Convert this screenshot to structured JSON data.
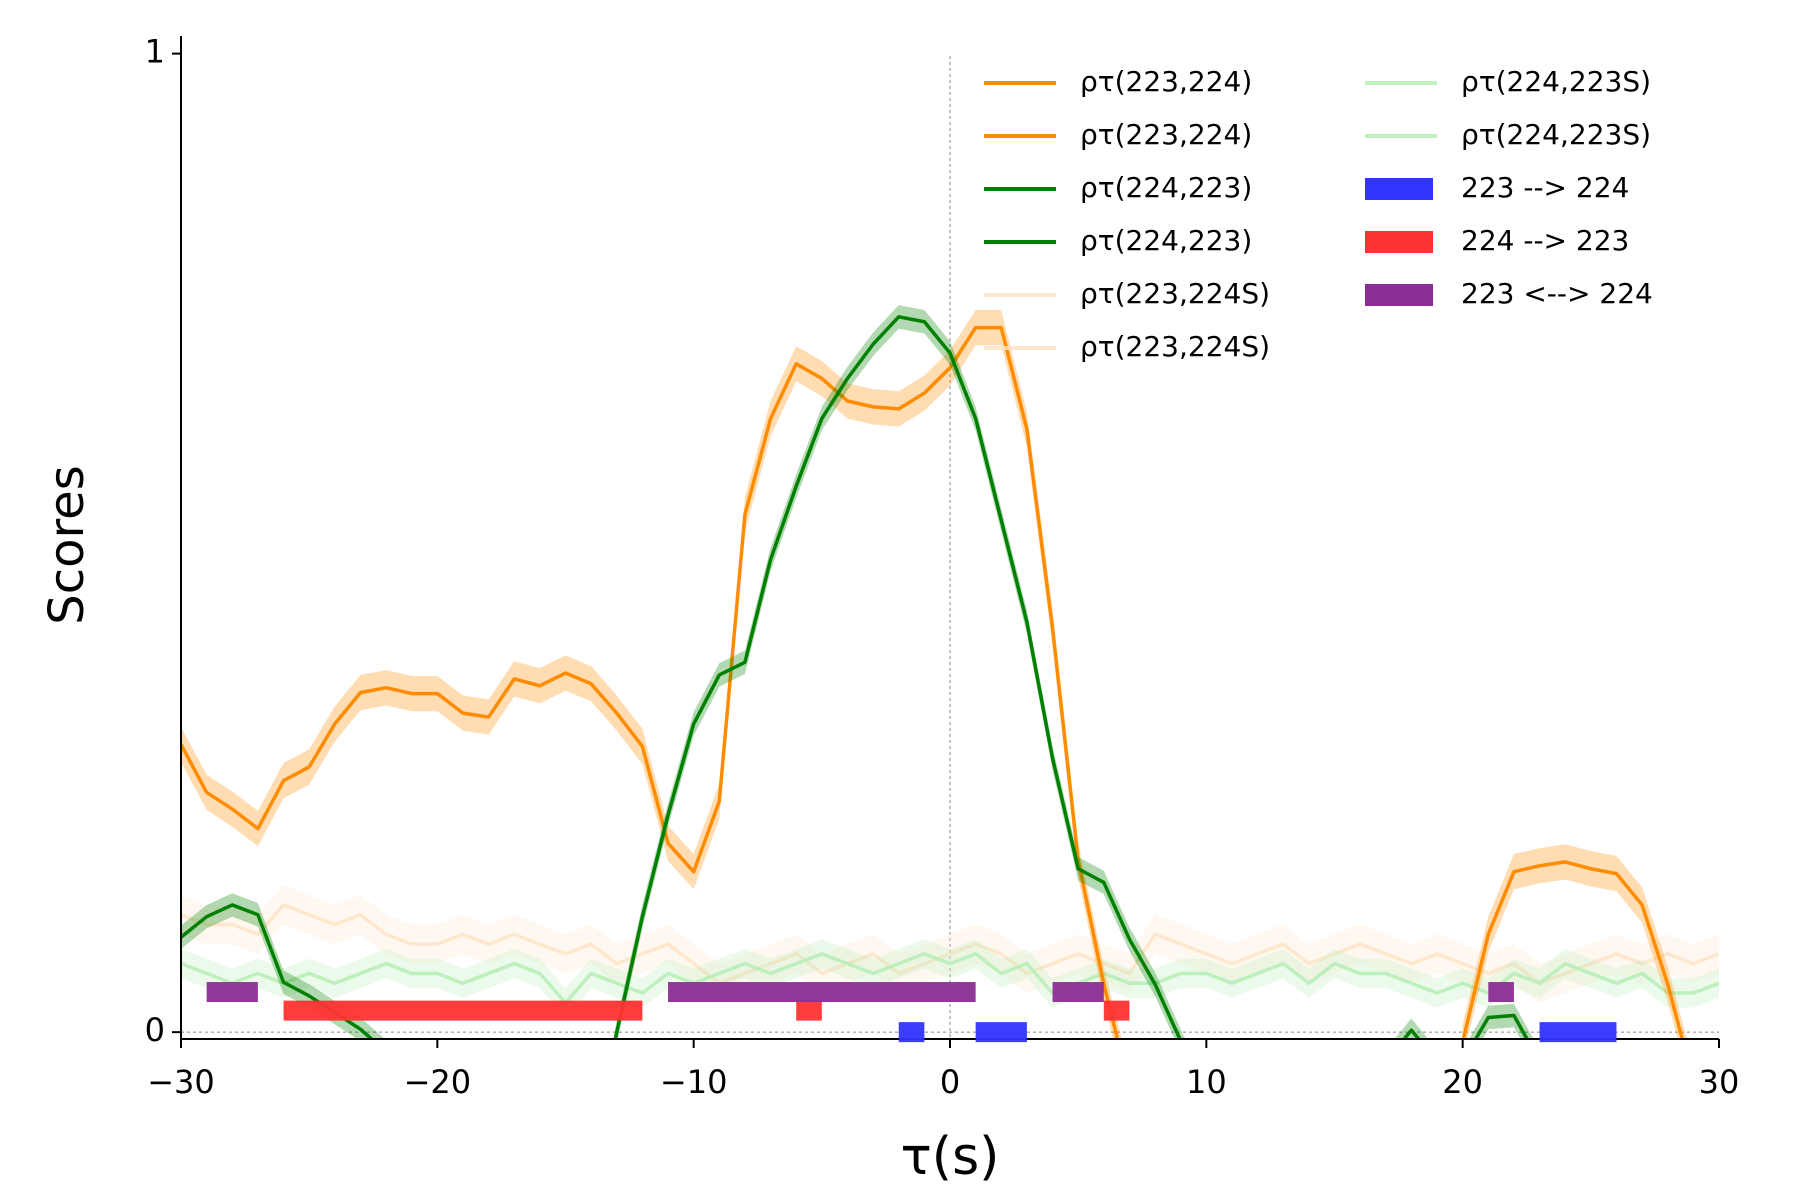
{
  "chart_data": {
    "type": "line",
    "x_label": "τ(s)",
    "y_label": "Scores",
    "x": [
      -30,
      -29,
      -28,
      -27,
      -26,
      -25,
      -24,
      -23,
      -22,
      -21,
      -20,
      -19,
      -18,
      -17,
      -16,
      -15,
      -14,
      -13,
      -12,
      -11,
      -10,
      -9,
      -8,
      -7,
      -6,
      -5,
      -4,
      -3,
      -2,
      -1,
      0,
      1,
      2,
      3,
      4,
      5,
      6,
      7,
      8,
      9,
      10,
      11,
      12,
      13,
      14,
      15,
      16,
      17,
      18,
      19,
      20,
      21,
      22,
      23,
      24,
      25,
      26,
      27,
      28,
      29,
      30
    ],
    "xlim": [
      -30,
      30
    ],
    "ylim": [
      -0.007,
      1.018
    ],
    "xticks": [
      {
        "value": -30,
        "label": "−30"
      },
      {
        "value": -20,
        "label": "−20"
      },
      {
        "value": -10,
        "label": "−10"
      },
      0,
      10,
      20,
      30
    ],
    "yticks": [
      0,
      1
    ],
    "zero_lines": true,
    "series": [
      {
        "name": "ρτ(223,224)",
        "band_name": "ρτ(223,224)",
        "color": "#ff8c00",
        "band": 0.018,
        "opacity": 1,
        "values": [
          0.294,
          0.245,
          0.228,
          0.208,
          0.257,
          0.271,
          0.315,
          0.347,
          0.352,
          0.346,
          0.346,
          0.326,
          0.322,
          0.361,
          0.354,
          0.367,
          0.356,
          0.326,
          0.292,
          0.193,
          0.164,
          0.236,
          0.529,
          0.627,
          0.683,
          0.668,
          0.645,
          0.639,
          0.637,
          0.653,
          0.679,
          0.72,
          0.72,
          0.616,
          0.413,
          0.176,
          0.049,
          -0.056,
          null,
          null,
          null,
          null,
          null,
          null,
          null,
          null,
          null,
          null,
          null,
          null,
          -0.01,
          0.1,
          0.164,
          0.17,
          0.174,
          0.167,
          0.162,
          0.13,
          0.049,
          -0.05,
          null
        ]
      },
      {
        "name": "ρτ(224,223)",
        "band_name": "ρτ(224,223)",
        "color": "#008000",
        "band": 0.012,
        "opacity": 1,
        "values": [
          0.097,
          0.118,
          0.13,
          0.12,
          0.051,
          0.037,
          0.02,
          0.003,
          -0.02,
          null,
          null,
          null,
          null,
          null,
          null,
          null,
          -0.14,
          0.0,
          0.118,
          0.222,
          0.315,
          0.365,
          0.378,
          0.483,
          0.558,
          0.627,
          0.668,
          0.703,
          0.731,
          0.726,
          0.694,
          0.627,
          0.523,
          0.419,
          0.28,
          0.167,
          0.153,
          0.095,
          0.049,
          -0.009,
          -0.07,
          null,
          null,
          null,
          null,
          null,
          null,
          -0.03,
          0.002,
          -0.03,
          -0.03,
          0.015,
          0.017,
          -0.03,
          null,
          null,
          null,
          null,
          null,
          null,
          null
        ]
      },
      {
        "name": "ρτ(223,224S)",
        "band_name": "ρτ(223,224S)",
        "color": "#ffe2c4",
        "band": 0.02,
        "opacity": 0.8,
        "values": [
          0.12,
          0.11,
          0.11,
          0.1,
          0.13,
          0.12,
          0.11,
          0.12,
          0.1,
          0.09,
          0.09,
          0.1,
          0.09,
          0.1,
          0.09,
          0.08,
          0.09,
          0.07,
          0.08,
          0.09,
          0.07,
          0.05,
          0.06,
          0.07,
          0.08,
          0.06,
          0.07,
          0.08,
          0.06,
          0.07,
          0.08,
          0.09,
          0.08,
          0.06,
          0.07,
          0.08,
          0.07,
          0.06,
          0.1,
          0.09,
          0.08,
          0.07,
          0.08,
          0.09,
          0.07,
          0.08,
          0.09,
          0.08,
          0.07,
          0.08,
          0.07,
          0.06,
          0.07,
          0.05,
          0.06,
          0.07,
          0.08,
          0.07,
          0.08,
          0.07,
          0.08
        ]
      },
      {
        "name": "ρτ(224,223S)",
        "band_name": "ρτ(224,223S)",
        "color": "#b8eeb8",
        "band": 0.015,
        "opacity": 0.9,
        "values": [
          0.07,
          0.06,
          0.05,
          0.06,
          0.05,
          0.06,
          0.05,
          0.06,
          0.07,
          0.06,
          0.06,
          0.05,
          0.06,
          0.07,
          0.06,
          0.03,
          0.06,
          0.05,
          0.04,
          0.06,
          0.05,
          0.06,
          0.07,
          0.06,
          0.07,
          0.08,
          0.07,
          0.06,
          0.07,
          0.08,
          0.07,
          0.08,
          0.06,
          0.07,
          0.04,
          0.05,
          0.06,
          0.05,
          0.05,
          0.06,
          0.06,
          0.05,
          0.06,
          0.07,
          0.05,
          0.07,
          0.06,
          0.06,
          0.05,
          0.04,
          0.05,
          0.04,
          0.06,
          0.05,
          0.07,
          0.06,
          0.05,
          0.06,
          0.04,
          0.04,
          0.05
        ]
      }
    ],
    "intervals": [
      {
        "name": "223 --> 224",
        "color": "#3333ff",
        "level": 0.0,
        "spans": [
          [
            -2,
            -1
          ],
          [
            1,
            3
          ],
          [
            23,
            26
          ]
        ]
      },
      {
        "name": "224 --> 223",
        "color": "#ff3333",
        "level": 0.022,
        "spans": [
          [
            -26,
            -12
          ],
          [
            -6,
            -5
          ],
          [
            6,
            7
          ]
        ]
      },
      {
        "name": "223 <--> 224",
        "color": "#8b2e94",
        "level": 0.041,
        "spans": [
          [
            -29,
            -27
          ],
          [
            -11,
            1
          ],
          [
            4,
            6
          ],
          [
            21,
            22
          ]
        ]
      }
    ]
  }
}
